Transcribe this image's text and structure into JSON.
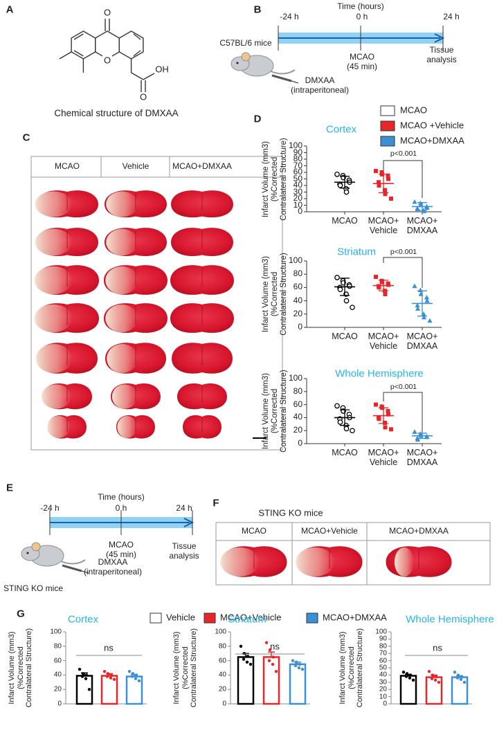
{
  "panel_labels": [
    "A",
    "B",
    "C",
    "D",
    "E",
    "F",
    "G"
  ],
  "panel_a": {
    "atoms": [
      "O",
      "O",
      "OH",
      "O"
    ],
    "caption": "Chemical structure of DMXAA"
  },
  "panel_b": {
    "axis_title": "Time (hours)",
    "ticks": [
      "-24 h",
      "0 h",
      "24 h"
    ],
    "mouse": "C57BL/6 mice",
    "event": "MCAO\n(45 min)",
    "end": "Tissue\nanalysis",
    "injection": "DMXAA\n(intraperitoneal)"
  },
  "panel_c": {
    "columns": [
      "MCAO",
      "Vehicle",
      "MCAO+DMXAA"
    ]
  },
  "legend_d": {
    "labels": [
      "MCAO",
      "MCAO +Vehicle",
      "MCAO+DMXAA"
    ],
    "colors": [
      "#ffffff",
      "#e8262a",
      "#3b8fd6"
    ]
  },
  "panel_e": {
    "axis_title": "Time (hours)",
    "ticks": [
      "-24 h",
      "0 h",
      "24 h"
    ],
    "mouse": "STING KO mice",
    "event": "MCAO\n(45 min)",
    "end": "Tissue\nanalysis",
    "injection": "DMXAA\n(intraperitoneal)"
  },
  "panel_f": {
    "title": "STING KO mice",
    "columns": [
      "MCAO",
      "MCAO+Vehicle",
      "MCAO+DMXAA"
    ]
  },
  "legend_g": {
    "labels": [
      "Vehicle",
      "MCAO+Vehicle",
      "MCAO+DMXAA"
    ],
    "colors": [
      "#ffffff",
      "#e8262a",
      "#3b8fd6"
    ]
  },
  "chart_data": [
    {
      "type": "dot",
      "title": "Cortex",
      "y_label": "Infarct Volume (mm3)\n(%Corrected\nContralateral Structure)",
      "categories": [
        "MCAO",
        "MCAO+\nVehicle",
        "MCAO+\nDMXAA"
      ],
      "ylim": [
        0,
        100
      ],
      "yticks": [
        0,
        10,
        20,
        30,
        40,
        50,
        60,
        70,
        80,
        90,
        100
      ],
      "annotation": "p<0.001",
      "groups": [
        {
          "color": "#000000",
          "marker": "open-circle",
          "points": [
            57,
            55,
            52,
            48,
            45,
            42,
            40,
            35,
            30
          ],
          "mean": 45,
          "error": 9
        },
        {
          "color": "#e8262a",
          "marker": "square",
          "points": [
            62,
            60,
            57,
            55,
            50,
            45,
            40,
            33,
            27,
            20
          ],
          "mean": 43,
          "error": 14
        },
        {
          "color": "#3b8fd6",
          "marker": "triangle",
          "points": [
            15,
            13,
            10,
            8,
            6,
            5,
            4,
            2,
            1
          ],
          "mean": 8,
          "error": 6
        }
      ]
    },
    {
      "type": "dot",
      "title": "Striatum",
      "y_label": "Infarct Volume (mm3)\n(%Corrected\nContralateral Structure)",
      "categories": [
        "MCAO",
        "MCAO+\nVehicle",
        "MCAO+\nDMXAA"
      ],
      "ylim": [
        0,
        100
      ],
      "yticks": [
        0,
        20,
        40,
        60,
        80,
        100
      ],
      "annotation": "p<0.001",
      "groups": [
        {
          "color": "#000000",
          "marker": "open-circle",
          "points": [
            75,
            70,
            67,
            64,
            62,
            60,
            57,
            50,
            40,
            30
          ],
          "mean": 61,
          "error": 13
        },
        {
          "color": "#e8262a",
          "marker": "square",
          "points": [
            76,
            70,
            68,
            66,
            64,
            62,
            60,
            55,
            50
          ],
          "mean": 63,
          "error": 8
        },
        {
          "color": "#3b8fd6",
          "marker": "triangle",
          "points": [
            62,
            56,
            50,
            45,
            40,
            33,
            28,
            20,
            15,
            10
          ],
          "mean": 36,
          "error": 19
        }
      ]
    },
    {
      "type": "dot",
      "title": "Whole Hemisphere",
      "y_label": "Infarct Volume (mm3)\n(%Corrected\nContralateral Structure)",
      "categories": [
        "MCAO",
        "MCAO+\nVehicle",
        "MCAO+\nDMXAA"
      ],
      "ylim": [
        0,
        100
      ],
      "yticks": [
        0,
        20,
        40,
        60,
        80,
        100
      ],
      "annotation": "p<0.001",
      "groups": [
        {
          "color": "#000000",
          "marker": "open-circle",
          "points": [
            58,
            55,
            50,
            45,
            40,
            38,
            33,
            28,
            23,
            20
          ],
          "mean": 40,
          "error": 12
        },
        {
          "color": "#e8262a",
          "marker": "square",
          "points": [
            60,
            57,
            55,
            50,
            45,
            40,
            38,
            32,
            25,
            22
          ],
          "mean": 43,
          "error": 12
        },
        {
          "color": "#3b8fd6",
          "marker": "triangle",
          "points": [
            18,
            15,
            12,
            11,
            10,
            8,
            6
          ],
          "mean": 12,
          "error": 4
        }
      ]
    },
    {
      "type": "bar",
      "title": "Cortex",
      "y_label": "Infarct Volume (mm3)\n(%Corrected\nContralateral Structure)",
      "ylim": [
        0,
        100
      ],
      "yticks": [
        0,
        20,
        40,
        60,
        80,
        100
      ],
      "annotation": "ns",
      "colors": [
        "#000000",
        "#e8262a",
        "#3b8fd6"
      ],
      "values": [
        39,
        39,
        38
      ],
      "errors": [
        4,
        3,
        3
      ],
      "points": [
        [
          48,
          42,
          40,
          38,
          35,
          20
        ],
        [
          45,
          42,
          40,
          38,
          36,
          34
        ],
        [
          45,
          42,
          40,
          38,
          35,
          32
        ]
      ]
    },
    {
      "type": "bar",
      "title": "Striatum",
      "y_label": "Infarct Volume (mm3)\n(%Corrected\nContralateral Structure)",
      "ylim": [
        0,
        100
      ],
      "yticks": [
        0,
        20,
        40,
        60,
        80,
        100
      ],
      "annotation": "ns",
      "colors": [
        "#000000",
        "#e8262a",
        "#3b8fd6"
      ],
      "values": [
        65,
        65,
        55
      ],
      "errors": [
        5,
        7,
        3
      ],
      "points": [
        [
          80,
          70,
          66,
          62,
          58,
          55
        ],
        [
          85,
          75,
          65,
          60,
          55,
          45
        ],
        [
          60,
          58,
          55,
          53,
          50,
          48
        ]
      ]
    },
    {
      "type": "bar",
      "title": "Whole Hemisphere",
      "y_label": "Infarct Volume (mm3)\n(%Corrected\nContralateral Structure)",
      "ylim": [
        0,
        100
      ],
      "yticks": [
        0,
        10,
        20,
        30,
        40,
        50,
        60,
        70,
        80,
        90,
        100
      ],
      "annotation": "ns",
      "colors": [
        "#000000",
        "#e8262a",
        "#3b8fd6"
      ],
      "values": [
        39,
        37,
        37
      ],
      "errors": [
        2,
        3,
        2
      ],
      "points": [
        [
          44,
          42,
          40,
          38,
          36,
          33
        ],
        [
          45,
          40,
          38,
          35,
          33,
          30
        ],
        [
          44,
          40,
          38,
          36,
          34,
          30
        ]
      ]
    }
  ]
}
